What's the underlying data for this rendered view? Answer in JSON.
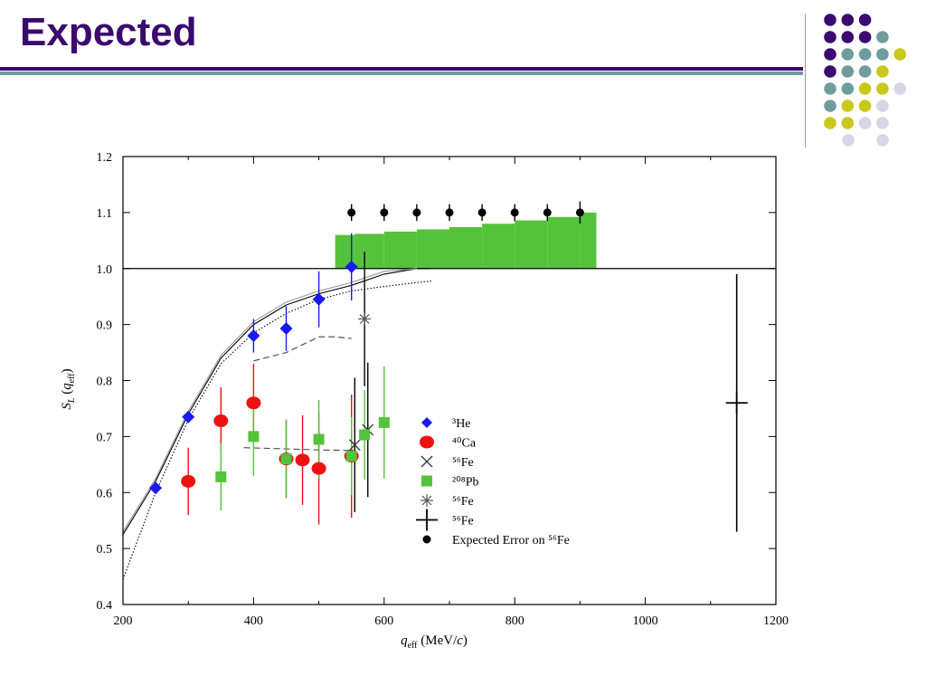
{
  "slide": {
    "title": "Expected",
    "accent_colors": {
      "purple": "#3b0a6e",
      "teal": "#6f9d9d",
      "yellow": "#c9c81c",
      "lavender": "#d7d5e8"
    }
  },
  "chart_data": {
    "type": "scatter",
    "title": "",
    "xlabel": "q_eff (MeV/c)",
    "ylabel": "S_L (q_eff)",
    "xlim": [
      200,
      1200
    ],
    "ylim": [
      0.4,
      1.2
    ],
    "x_ticks": [
      200,
      400,
      600,
      800,
      1000,
      1200
    ],
    "y_ticks": [
      0.4,
      0.5,
      0.6,
      0.7,
      0.8,
      0.9,
      1.0,
      1.1,
      1.2
    ],
    "grid": false,
    "legend_position": "center",
    "reference_line": 1.0,
    "band": {
      "color": "#55c23b",
      "steps": [
        {
          "x0": 525,
          "x1": 555,
          "y0": 1.0,
          "y1": 1.06
        },
        {
          "x0": 555,
          "x1": 600,
          "y0": 1.0,
          "y1": 1.062
        },
        {
          "x0": 600,
          "x1": 650,
          "y0": 1.0,
          "y1": 1.066
        },
        {
          "x0": 650,
          "x1": 700,
          "y0": 1.0,
          "y1": 1.07
        },
        {
          "x0": 700,
          "x1": 750,
          "y0": 1.0,
          "y1": 1.074
        },
        {
          "x0": 750,
          "x1": 800,
          "y0": 1.0,
          "y1": 1.08
        },
        {
          "x0": 800,
          "x1": 850,
          "y0": 1.0,
          "y1": 1.086
        },
        {
          "x0": 850,
          "x1": 900,
          "y0": 1.0,
          "y1": 1.092
        },
        {
          "x0": 900,
          "x1": 925,
          "y0": 1.0,
          "y1": 1.1
        }
      ]
    },
    "curves": [
      {
        "style": "solid",
        "color": "#000000",
        "points": [
          [
            200,
            0.525
          ],
          [
            250,
            0.62
          ],
          [
            300,
            0.74
          ],
          [
            350,
            0.84
          ],
          [
            400,
            0.9
          ],
          [
            450,
            0.935
          ],
          [
            500,
            0.955
          ],
          [
            550,
            0.97
          ],
          [
            600,
            0.99
          ],
          [
            650,
            1.0
          ],
          [
            670,
            1.0
          ]
        ]
      },
      {
        "style": "solid",
        "color": "#999999",
        "points": [
          [
            200,
            0.53
          ],
          [
            250,
            0.625
          ],
          [
            300,
            0.745
          ],
          [
            350,
            0.845
          ],
          [
            400,
            0.905
          ],
          [
            450,
            0.94
          ],
          [
            500,
            0.96
          ],
          [
            550,
            0.975
          ],
          [
            600,
            0.995
          ],
          [
            650,
            1.0
          ]
        ]
      },
      {
        "style": "dotted",
        "color": "#000000",
        "points": [
          [
            200,
            0.445
          ],
          [
            250,
            0.6
          ],
          [
            300,
            0.73
          ],
          [
            350,
            0.83
          ],
          [
            400,
            0.885
          ],
          [
            450,
            0.92
          ],
          [
            500,
            0.945
          ],
          [
            550,
            0.96
          ],
          [
            600,
            0.968
          ],
          [
            650,
            0.975
          ],
          [
            675,
            0.978
          ]
        ]
      },
      {
        "style": "dashed",
        "color": "#444444",
        "points": [
          [
            400,
            0.835
          ],
          [
            450,
            0.85
          ],
          [
            500,
            0.878
          ],
          [
            525,
            0.878
          ],
          [
            550,
            0.875
          ]
        ]
      },
      {
        "style": "dashed",
        "color": "#444444",
        "points": [
          [
            385,
            0.68
          ],
          [
            450,
            0.678
          ],
          [
            500,
            0.676
          ],
          [
            550,
            0.675
          ]
        ]
      }
    ],
    "series": [
      {
        "name": "³He",
        "marker": "diamond",
        "color": "#1a1aee",
        "points": [
          {
            "x": 250,
            "y": 0.608,
            "err": 0
          },
          {
            "x": 300,
            "y": 0.735,
            "err": 0
          },
          {
            "x": 400,
            "y": 0.88,
            "err": 0.03
          },
          {
            "x": 450,
            "y": 0.893,
            "err": 0.04
          },
          {
            "x": 500,
            "y": 0.945,
            "err": 0.05
          },
          {
            "x": 550,
            "y": 1.003,
            "err": 0.06
          }
        ]
      },
      {
        "name": "⁴⁰Ca",
        "marker": "ellipse",
        "color": "#ee1111",
        "points": [
          {
            "x": 300,
            "y": 0.62,
            "err": 0.06
          },
          {
            "x": 350,
            "y": 0.728,
            "err": 0.06
          },
          {
            "x": 400,
            "y": 0.76,
            "err": 0.07
          },
          {
            "x": 450,
            "y": 0.66,
            "err": 0.07
          },
          {
            "x": 475,
            "y": 0.658,
            "err": 0.08
          },
          {
            "x": 500,
            "y": 0.643,
            "err": 0.1
          },
          {
            "x": 550,
            "y": 0.665,
            "err": 0.11
          }
        ]
      },
      {
        "name": "⁵⁶Fe",
        "marker": "x",
        "color": "#333333",
        "points": [
          {
            "x": 555,
            "y": 0.685,
            "err": 0.12
          },
          {
            "x": 575,
            "y": 0.712,
            "err": 0.12
          }
        ]
      },
      {
        "name": "²⁰⁸Pb",
        "marker": "square",
        "color": "#55c23b",
        "points": [
          {
            "x": 350,
            "y": 0.628,
            "err": 0.06
          },
          {
            "x": 400,
            "y": 0.7,
            "err": 0.07
          },
          {
            "x": 450,
            "y": 0.66,
            "err": 0.07
          },
          {
            "x": 500,
            "y": 0.695,
            "err": 0.07
          },
          {
            "x": 550,
            "y": 0.665,
            "err": 0.07
          },
          {
            "x": 570,
            "y": 0.703,
            "err": 0.08
          },
          {
            "x": 600,
            "y": 0.725,
            "err": 0.1
          }
        ]
      },
      {
        "name": "⁵⁶Fe",
        "marker": "asterisk",
        "color": "#555555",
        "points": [
          {
            "x": 570,
            "y": 0.91,
            "err": 0.12
          }
        ]
      },
      {
        "name": "⁵⁶Fe",
        "marker": "plus",
        "color": "#000000",
        "points": [
          {
            "x": 1140,
            "y": 0.76,
            "err": 0.23
          }
        ]
      },
      {
        "name": "Expected Error on ⁵⁶Fe",
        "marker": "dot",
        "color": "#000000",
        "points": [
          {
            "x": 550,
            "y": 1.1,
            "err": 0.015
          },
          {
            "x": 600,
            "y": 1.1,
            "err": 0.015
          },
          {
            "x": 650,
            "y": 1.1,
            "err": 0.015
          },
          {
            "x": 700,
            "y": 1.1,
            "err": 0.015
          },
          {
            "x": 750,
            "y": 1.1,
            "err": 0.015
          },
          {
            "x": 800,
            "y": 1.1,
            "err": 0.015
          },
          {
            "x": 850,
            "y": 1.1,
            "err": 0.015
          },
          {
            "x": 900,
            "y": 1.1,
            "err": 0.02
          }
        ]
      }
    ]
  }
}
